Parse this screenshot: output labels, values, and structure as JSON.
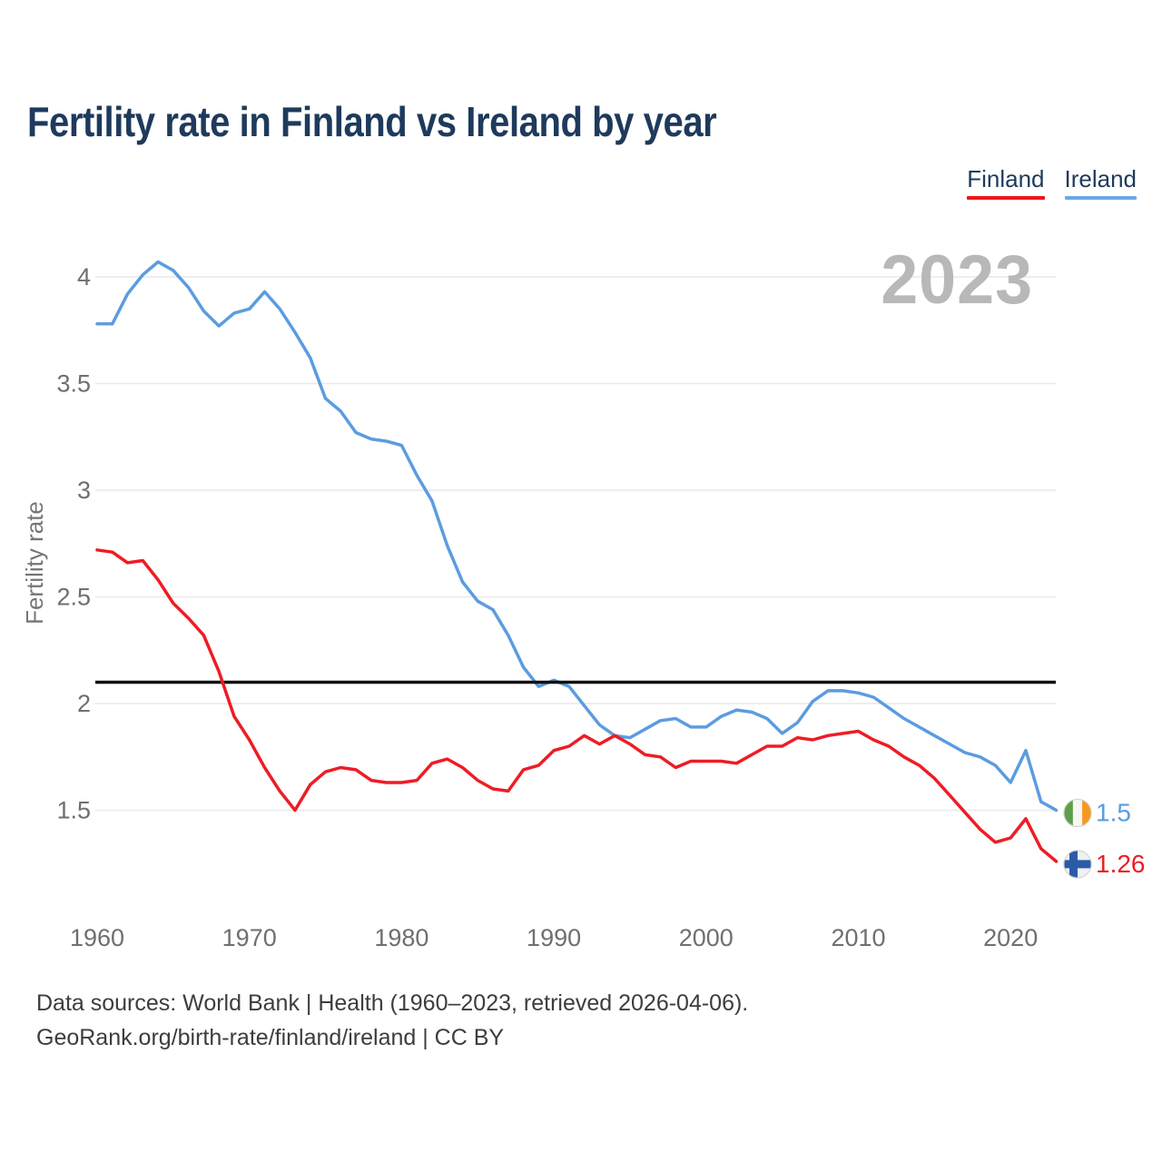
{
  "title": "Fertility rate in Finland vs Ireland by year",
  "watermark": "2023",
  "legend": [
    {
      "label": "Finland",
      "color": "#f01418"
    },
    {
      "label": "Ireland",
      "color": "#6aaae4"
    }
  ],
  "footer": {
    "line1": "Data sources: World Bank | Health (1960–2023, retrieved 2026-04-06).",
    "line2": "GeoRank.org/birth-rate/finland/ireland | CC BY"
  },
  "end_labels": [
    {
      "series": "Ireland",
      "text": "1.5",
      "color": "#5b9ce0",
      "flag": "ireland-flag"
    },
    {
      "series": "Finland",
      "text": "1.26",
      "color": "#ee1c25",
      "flag": "finland-flag"
    }
  ],
  "flag_colors": {
    "ireland": {
      "green": "#5f9e48",
      "white": "#f6f6f4",
      "orange": "#f6991e",
      "ring": "#d0d0d0"
    },
    "finland": {
      "background": "#eef0f2",
      "cross": "#2b5ba8",
      "ring": "#d0d0d0"
    }
  },
  "chart_data": {
    "type": "line",
    "title": "Fertility rate in Finland vs Ireland by year",
    "xlabel": "",
    "ylabel": "Fertility rate",
    "x_range": [
      1960,
      2023
    ],
    "ylim": [
      1.2,
      4.2
    ],
    "grid": true,
    "legend_position": "top-right",
    "reference_line": 2.1,
    "yticks": [
      "1.5",
      "2",
      "2.5",
      "3",
      "3.5",
      "4"
    ],
    "ytick_values": [
      1.5,
      2,
      2.5,
      3,
      3.5,
      4
    ],
    "xticks": [
      1960,
      1970,
      1980,
      1990,
      2000,
      2010,
      2020
    ],
    "series": [
      {
        "name": "Ireland",
        "color": "#5b9ce0",
        "final_value": 1.5,
        "values": [
          3.78,
          3.78,
          3.92,
          4.01,
          4.07,
          4.03,
          3.95,
          3.84,
          3.77,
          3.83,
          3.85,
          3.93,
          3.85,
          3.74,
          3.62,
          3.43,
          3.37,
          3.27,
          3.24,
          3.23,
          3.21,
          3.07,
          2.95,
          2.74,
          2.57,
          2.48,
          2.44,
          2.32,
          2.17,
          2.08,
          2.11,
          2.08,
          1.99,
          1.9,
          1.85,
          1.84,
          1.88,
          1.92,
          1.93,
          1.89,
          1.89,
          1.94,
          1.97,
          1.96,
          1.93,
          1.86,
          1.91,
          2.01,
          2.06,
          2.06,
          2.05,
          2.03,
          1.98,
          1.93,
          1.89,
          1.85,
          1.81,
          1.77,
          1.75,
          1.71,
          1.63,
          1.78,
          1.54,
          1.5
        ]
      },
      {
        "name": "Finland",
        "color": "#ee1c25",
        "final_value": 1.26,
        "values": [
          2.72,
          2.71,
          2.66,
          2.67,
          2.58,
          2.47,
          2.4,
          2.32,
          2.15,
          1.94,
          1.83,
          1.7,
          1.59,
          1.5,
          1.62,
          1.68,
          1.7,
          1.69,
          1.64,
          1.63,
          1.63,
          1.64,
          1.72,
          1.74,
          1.7,
          1.64,
          1.6,
          1.59,
          1.69,
          1.71,
          1.78,
          1.8,
          1.85,
          1.81,
          1.85,
          1.81,
          1.76,
          1.75,
          1.7,
          1.73,
          1.73,
          1.73,
          1.72,
          1.76,
          1.8,
          1.8,
          1.84,
          1.83,
          1.85,
          1.86,
          1.87,
          1.83,
          1.8,
          1.75,
          1.71,
          1.65,
          1.57,
          1.49,
          1.41,
          1.35,
          1.37,
          1.46,
          1.32,
          1.26
        ]
      }
    ]
  }
}
